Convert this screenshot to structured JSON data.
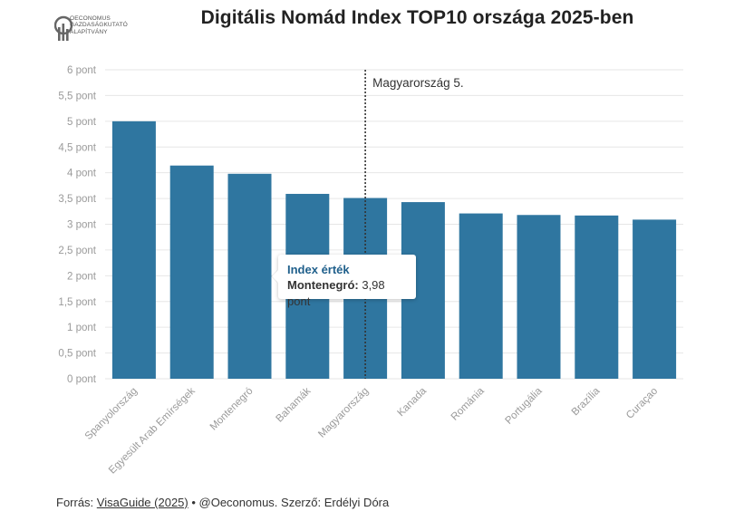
{
  "logo": {
    "line1": "OECONOMUS",
    "line2": "GAZDASÁGKUTATÓ",
    "line3": "ALAPÍTVÁNY"
  },
  "title": "Digitális Nomád Index TOP10 országa 2025-ben",
  "annotation": "Magyarország 5.",
  "tooltip": {
    "title": "Index érték",
    "country": "Montenegró:",
    "value": "3,98 pont"
  },
  "source": {
    "prefix": "Forrás: ",
    "link_text": "VisaGuide (2025)",
    "suffix": " • @Oeconomus. Szerző: Erdélyi Dóra"
  },
  "colors": {
    "bar": "#2f76a0",
    "grid": "#e6e6e6",
    "accent": "#1f5f8b"
  },
  "chart_data": {
    "type": "bar",
    "title": "Digitális Nomád Index TOP10 országa 2025-ben",
    "categories": [
      "Spanyolország",
      "Egyesült Arab Emírségek",
      "Montenegró",
      "Bahamák",
      "Magyarország",
      "Kanada",
      "Románia",
      "Portugália",
      "Brazília",
      "Curaçao"
    ],
    "values": [
      5.0,
      4.14,
      3.98,
      3.59,
      3.51,
      3.43,
      3.21,
      3.18,
      3.17,
      3.09
    ],
    "ylim": [
      0,
      6
    ],
    "yticks": [
      "0 pont",
      "0,5 pont",
      "1 pont",
      "1,5 pont",
      "2 pont",
      "2,5 pont",
      "3 pont",
      "3,5 pont",
      "4 pont",
      "4,5 pont",
      "5 pont",
      "5,5 pont",
      "6 pont"
    ],
    "highlight_category": "Magyarország",
    "grid": true
  }
}
